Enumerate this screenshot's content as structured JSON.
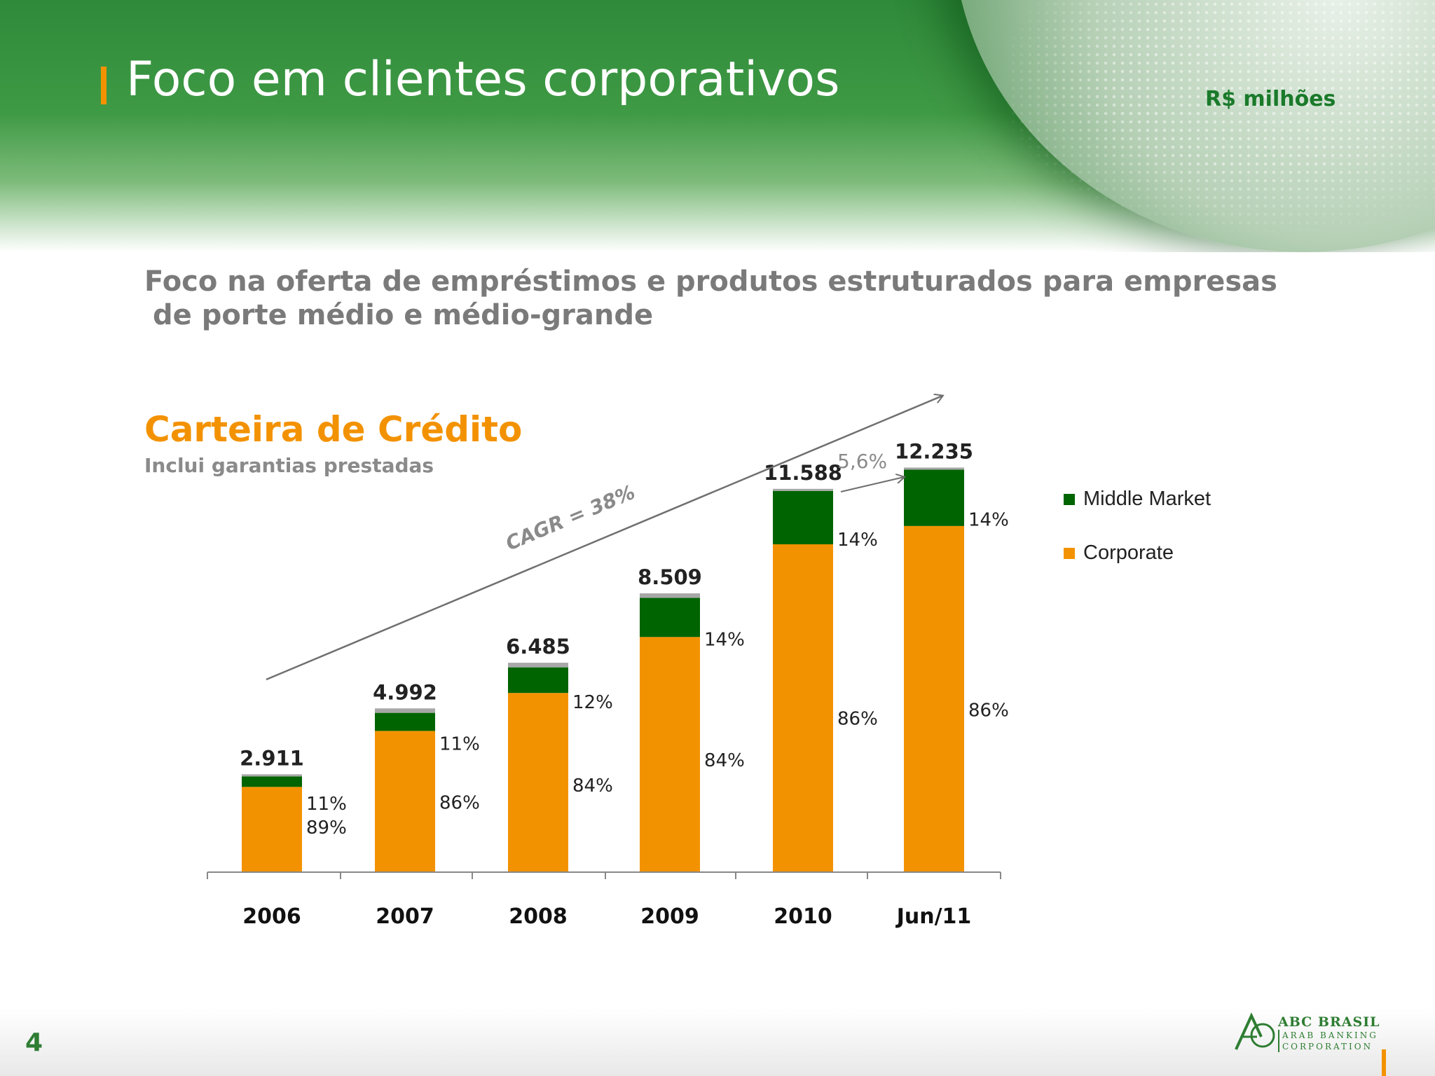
{
  "header": {
    "title": "Foco em clientes corporativos",
    "units": "R$ milhões"
  },
  "subtitle": {
    "line1": "Foco na oferta de empréstimos e produtos estruturados para empresas",
    "line2": "de porte médio e médio-grande"
  },
  "chart_title": "Carteira de Crédito",
  "chart_subtitle": "Inclui garantias prestadas",
  "chart_data": {
    "type": "bar",
    "stacked": true,
    "categories": [
      "2006",
      "2007",
      "2008",
      "2009",
      "2010",
      "Jun/11"
    ],
    "totals": [
      2911,
      4992,
      6485,
      8509,
      11588,
      12235
    ],
    "total_labels": [
      "2.911",
      "4.992",
      "6.485",
      "8.509",
      "11.588",
      "12.235"
    ],
    "series": [
      {
        "name": "Corporate",
        "color": "#f39200",
        "share_labels": [
          "89%",
          "86%",
          "84%",
          "84%",
          "86%",
          "86%"
        ]
      },
      {
        "name": "Middle Market",
        "color": "#006400",
        "share_labels": [
          "11%",
          "11%",
          "12%",
          "14%",
          "14%",
          "14%"
        ]
      }
    ],
    "residual_color": "#a8a8a8",
    "stack_values": {
      "Corporate": [
        2591,
        4293,
        5447,
        7148,
        9966,
        10522
      ],
      "Middle Market": [
        320,
        549,
        778,
        1191,
        1622,
        1713
      ],
      "other": [
        0,
        150,
        260,
        170,
        0,
        0
      ]
    },
    "annotations": {
      "cagr": "CAGR = 38%",
      "growth": "5,6%"
    },
    "ylim": [
      0,
      13000
    ],
    "grid": false,
    "legend_position": "right"
  },
  "legend": {
    "items": [
      "Middle Market",
      "Corporate"
    ]
  },
  "footer": {
    "page_number": "4",
    "logo_name": "ABC BRASIL",
    "logo_tagline_1": "ARAB BANKING",
    "logo_tagline_2": "CORPORATION"
  }
}
